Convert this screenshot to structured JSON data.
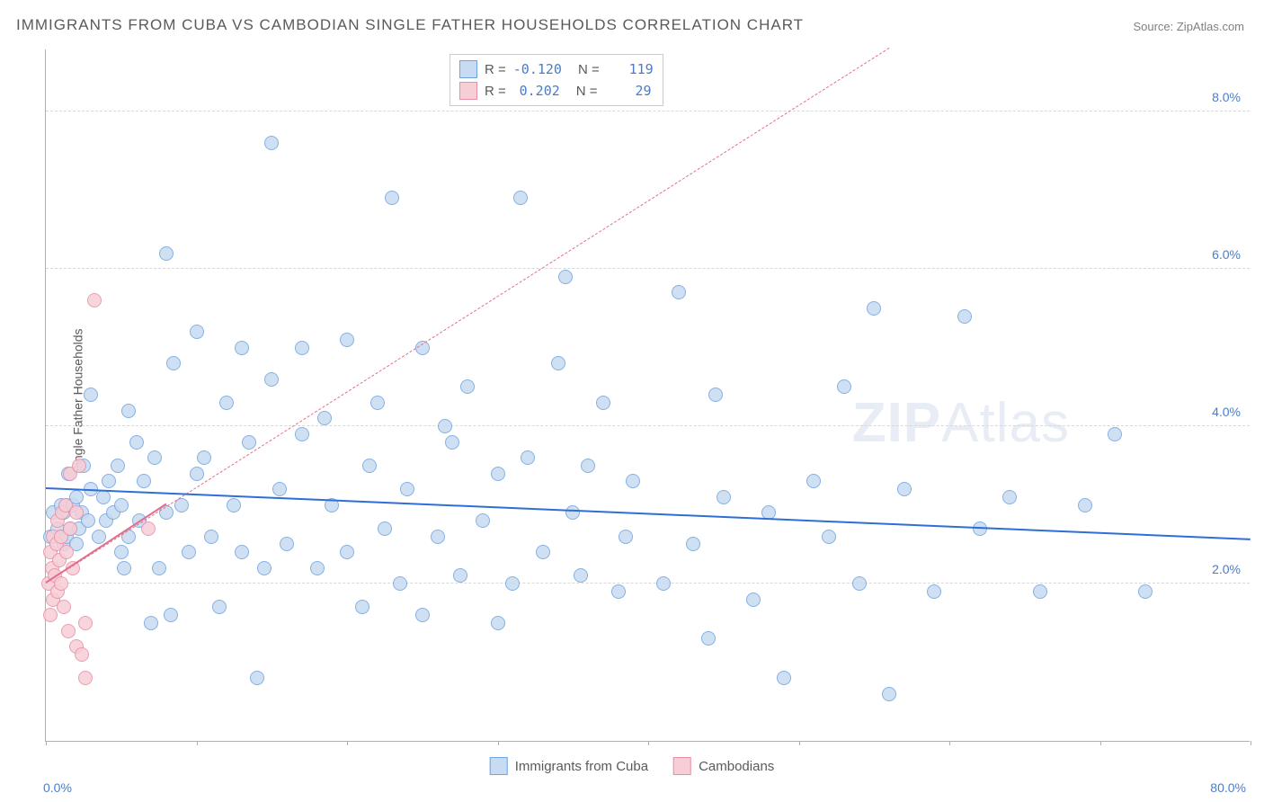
{
  "title": "IMMIGRANTS FROM CUBA VS CAMBODIAN SINGLE FATHER HOUSEHOLDS CORRELATION CHART",
  "source_label": "Source: ZipAtlas.com",
  "y_axis_title": "Single Father Households",
  "watermark": {
    "bold": "ZIP",
    "light": "Atlas"
  },
  "chart": {
    "type": "scatter",
    "background_color": "#ffffff",
    "grid_color": "#d8d8d8",
    "axis_color": "#b0b0b0",
    "xlim": [
      0,
      80
    ],
    "ylim": [
      0,
      8.8
    ],
    "x_tick_positions": [
      0,
      10,
      20,
      30,
      40,
      50,
      60,
      70,
      80
    ],
    "y_grid": [
      {
        "v": 2,
        "label": "2.0%"
      },
      {
        "v": 4,
        "label": "4.0%"
      },
      {
        "v": 6,
        "label": "6.0%"
      },
      {
        "v": 8,
        "label": "8.0%"
      }
    ],
    "x_min_label": "0.0%",
    "x_max_label": "80.0%",
    "marker_radius": 8,
    "marker_border_width": 1,
    "label_fontsize": 14,
    "title_fontsize": 17,
    "series": [
      {
        "name": "Immigrants from Cuba",
        "fill": "#c7dbf2",
        "stroke": "#6fa3e0",
        "trend_color": "#2e6fd6",
        "trend_width": 2,
        "trend_dash": "solid",
        "R": "-0.120",
        "N": "119",
        "trend": {
          "x1": 0,
          "y1": 3.2,
          "x2": 80,
          "y2": 2.55
        },
        "points": [
          [
            0.3,
            2.6
          ],
          [
            0.5,
            2.9
          ],
          [
            0.8,
            2.7
          ],
          [
            1.0,
            2.6
          ],
          [
            1.0,
            3.0
          ],
          [
            1.2,
            2.5
          ],
          [
            1.2,
            2.9
          ],
          [
            1.4,
            2.6
          ],
          [
            1.4,
            3.0
          ],
          [
            1.5,
            3.4
          ],
          [
            1.6,
            2.7
          ],
          [
            1.8,
            3.0
          ],
          [
            2.0,
            2.5
          ],
          [
            2.0,
            3.1
          ],
          [
            2.2,
            2.7
          ],
          [
            2.4,
            2.9
          ],
          [
            2.5,
            3.5
          ],
          [
            2.8,
            2.8
          ],
          [
            3.0,
            3.2
          ],
          [
            3.0,
            4.4
          ],
          [
            3.5,
            2.6
          ],
          [
            3.8,
            3.1
          ],
          [
            4.0,
            2.8
          ],
          [
            4.2,
            3.3
          ],
          [
            4.5,
            2.9
          ],
          [
            4.8,
            3.5
          ],
          [
            5.0,
            3.0
          ],
          [
            5.0,
            2.4
          ],
          [
            5.2,
            2.2
          ],
          [
            5.5,
            2.6
          ],
          [
            5.5,
            4.2
          ],
          [
            6.0,
            3.8
          ],
          [
            6.2,
            2.8
          ],
          [
            6.5,
            3.3
          ],
          [
            7.0,
            1.5
          ],
          [
            7.2,
            3.6
          ],
          [
            7.5,
            2.2
          ],
          [
            8.0,
            2.9
          ],
          [
            8.0,
            6.2
          ],
          [
            8.3,
            1.6
          ],
          [
            8.5,
            4.8
          ],
          [
            9.0,
            3.0
          ],
          [
            9.5,
            2.4
          ],
          [
            10.0,
            5.2
          ],
          [
            10.0,
            3.4
          ],
          [
            10.5,
            3.6
          ],
          [
            11.0,
            2.6
          ],
          [
            11.5,
            1.7
          ],
          [
            12.0,
            4.3
          ],
          [
            12.5,
            3.0
          ],
          [
            13.0,
            2.4
          ],
          [
            13.0,
            5.0
          ],
          [
            13.5,
            3.8
          ],
          [
            14.0,
            0.8
          ],
          [
            14.5,
            2.2
          ],
          [
            15.0,
            4.6
          ],
          [
            15.0,
            7.6
          ],
          [
            15.5,
            3.2
          ],
          [
            16.0,
            2.5
          ],
          [
            17.0,
            5.0
          ],
          [
            17.0,
            3.9
          ],
          [
            18.0,
            2.2
          ],
          [
            18.5,
            4.1
          ],
          [
            19.0,
            3.0
          ],
          [
            20.0,
            2.4
          ],
          [
            20.0,
            5.1
          ],
          [
            21.0,
            1.7
          ],
          [
            21.5,
            3.5
          ],
          [
            22.0,
            4.3
          ],
          [
            22.5,
            2.7
          ],
          [
            23.0,
            6.9
          ],
          [
            23.5,
            2.0
          ],
          [
            24.0,
            3.2
          ],
          [
            25.0,
            1.6
          ],
          [
            25.0,
            5.0
          ],
          [
            26.0,
            2.6
          ],
          [
            26.5,
            4.0
          ],
          [
            27.0,
            3.8
          ],
          [
            27.5,
            2.1
          ],
          [
            28.0,
            4.5
          ],
          [
            29.0,
            2.8
          ],
          [
            30.0,
            1.5
          ],
          [
            30.0,
            3.4
          ],
          [
            31.0,
            2.0
          ],
          [
            31.5,
            6.9
          ],
          [
            32.0,
            3.6
          ],
          [
            33.0,
            2.4
          ],
          [
            34.0,
            4.8
          ],
          [
            34.5,
            5.9
          ],
          [
            35.0,
            2.9
          ],
          [
            35.5,
            2.1
          ],
          [
            36.0,
            3.5
          ],
          [
            37.0,
            4.3
          ],
          [
            38.0,
            1.9
          ],
          [
            38.5,
            2.6
          ],
          [
            39.0,
            3.3
          ],
          [
            41.0,
            2.0
          ],
          [
            42.0,
            5.7
          ],
          [
            43.0,
            2.5
          ],
          [
            44.0,
            1.3
          ],
          [
            44.5,
            4.4
          ],
          [
            45.0,
            3.1
          ],
          [
            47.0,
            1.8
          ],
          [
            48.0,
            2.9
          ],
          [
            49.0,
            0.8
          ],
          [
            51.0,
            3.3
          ],
          [
            52.0,
            2.6
          ],
          [
            53.0,
            4.5
          ],
          [
            54.0,
            2.0
          ],
          [
            55.0,
            5.5
          ],
          [
            56.0,
            0.6
          ],
          [
            57.0,
            3.2
          ],
          [
            59.0,
            1.9
          ],
          [
            61.0,
            5.4
          ],
          [
            62.0,
            2.7
          ],
          [
            64.0,
            3.1
          ],
          [
            66.0,
            1.9
          ],
          [
            69.0,
            3.0
          ],
          [
            71.0,
            3.9
          ],
          [
            73.0,
            1.9
          ]
        ]
      },
      {
        "name": "Cambodians",
        "fill": "#f7cdd6",
        "stroke": "#e88fa3",
        "trend_color": "#e36f8c",
        "trend_width": 2,
        "trend_dash": "solid",
        "ref_line_dash": "4 4",
        "R": "0.202",
        "N": "29",
        "trend": {
          "x1": 0,
          "y1": 2.0,
          "x2": 8,
          "y2": 3.0
        },
        "ref_line": {
          "x1": 0,
          "y1": 2.0,
          "x2": 56,
          "y2": 8.8
        },
        "points": [
          [
            0.2,
            2.0
          ],
          [
            0.3,
            1.6
          ],
          [
            0.3,
            2.4
          ],
          [
            0.4,
            2.2
          ],
          [
            0.5,
            1.8
          ],
          [
            0.5,
            2.6
          ],
          [
            0.6,
            2.1
          ],
          [
            0.7,
            2.5
          ],
          [
            0.8,
            1.9
          ],
          [
            0.8,
            2.8
          ],
          [
            0.9,
            2.3
          ],
          [
            1.0,
            2.0
          ],
          [
            1.0,
            2.6
          ],
          [
            1.1,
            2.9
          ],
          [
            1.2,
            1.7
          ],
          [
            1.3,
            3.0
          ],
          [
            1.4,
            2.4
          ],
          [
            1.5,
            1.4
          ],
          [
            1.6,
            2.7
          ],
          [
            1.6,
            3.4
          ],
          [
            1.8,
            2.2
          ],
          [
            2.0,
            2.9
          ],
          [
            2.0,
            1.2
          ],
          [
            2.2,
            3.5
          ],
          [
            2.4,
            1.1
          ],
          [
            2.6,
            0.8
          ],
          [
            2.6,
            1.5
          ],
          [
            3.2,
            5.6
          ],
          [
            6.8,
            2.7
          ]
        ]
      }
    ]
  },
  "bottom_legend": [
    {
      "label": "Immigrants from Cuba",
      "fill": "#c7dbf2",
      "stroke": "#6fa3e0"
    },
    {
      "label": "Cambodians",
      "fill": "#f7cdd6",
      "stroke": "#e88fa3"
    }
  ]
}
